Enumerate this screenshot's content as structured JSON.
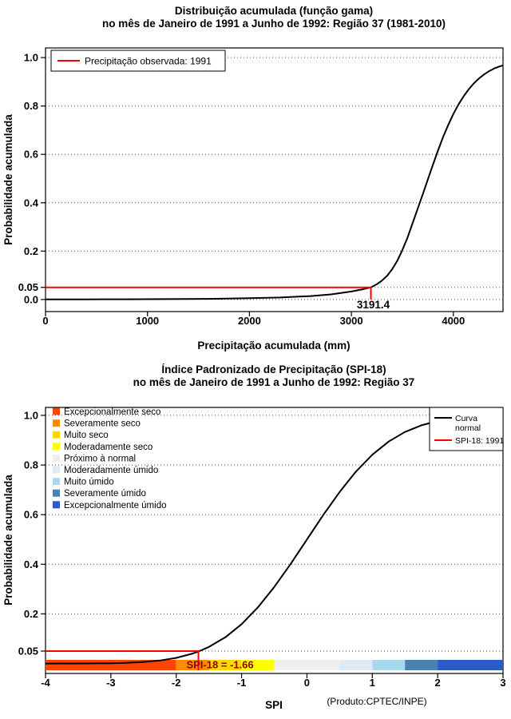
{
  "page": {
    "background": "#ffffff"
  },
  "chart_data": [
    {
      "type": "line",
      "title": "Distribuição acumulada (função gama)",
      "subtitle": "no mês de Janeiro de 1991 a Junho de 1992: Região 37 (1981-2010)",
      "xlabel": "Precipitação acumulada (mm)",
      "ylabel": "Probabilidade acumulada",
      "xlim": [
        0,
        4487
      ],
      "ylim": [
        -0.05,
        1.04
      ],
      "grid": "dotted-horizontal",
      "x_ticks": [
        0,
        1000,
        2000,
        3000,
        4000
      ],
      "x_tick_labels": [
        "0",
        "1000",
        "2000",
        "3000",
        "4000"
      ],
      "y_ticks": [
        0.0,
        0.05,
        0.2,
        0.4,
        0.6,
        0.8,
        1.0
      ],
      "y_tick_labels": [
        "0.0",
        "0.05",
        "0.2",
        "0.4",
        "0.6",
        "0.8",
        "1.0"
      ],
      "curve_color": "#000000",
      "legend": {
        "label": "Precipitação observada: 1991",
        "line_color": "#FF0000",
        "position": "top-left"
      },
      "annotation": {
        "label": "3191.4",
        "x": 3191.4,
        "y": 0.05,
        "line_color": "#FF0000"
      },
      "series": [
        {
          "name": "gamma-cdf",
          "points": [
            [
              0,
              0.0005
            ],
            [
              400,
              0.0006
            ],
            [
              800,
              0.0009
            ],
            [
              1200,
              0.0014
            ],
            [
              1600,
              0.0025
            ],
            [
              2000,
              0.005
            ],
            [
              2300,
              0.008
            ],
            [
              2600,
              0.014
            ],
            [
              2800,
              0.021
            ],
            [
              3000,
              0.033
            ],
            [
              3100,
              0.041
            ],
            [
              3191.4,
              0.05
            ],
            [
              3250,
              0.063
            ],
            [
              3300,
              0.078
            ],
            [
              3350,
              0.098
            ],
            [
              3400,
              0.125
            ],
            [
              3450,
              0.16
            ],
            [
              3500,
              0.205
            ],
            [
              3550,
              0.255
            ],
            [
              3600,
              0.315
            ],
            [
              3650,
              0.375
            ],
            [
              3700,
              0.435
            ],
            [
              3750,
              0.497
            ],
            [
              3800,
              0.558
            ],
            [
              3850,
              0.617
            ],
            [
              3900,
              0.672
            ],
            [
              3950,
              0.722
            ],
            [
              4000,
              0.767
            ],
            [
              4050,
              0.806
            ],
            [
              4100,
              0.84
            ],
            [
              4150,
              0.869
            ],
            [
              4200,
              0.893
            ],
            [
              4250,
              0.913
            ],
            [
              4300,
              0.93
            ],
            [
              4350,
              0.944
            ],
            [
              4400,
              0.955
            ],
            [
              4450,
              0.963
            ],
            [
              4487,
              0.968
            ]
          ]
        }
      ]
    },
    {
      "type": "line",
      "title": "Índice Padronizado de Precipitação (SPI-18)",
      "subtitle": "no mês de Janeiro de 1991 a Junho de 1992: Região 37",
      "xlabel": "SPI",
      "ylabel": "Probabilidade acumulada",
      "product_label": "(Produto:CPTEC/INPE)",
      "xlim": [
        -4,
        3
      ],
      "ylim": [
        -0.04,
        1.032
      ],
      "grid": "dotted-horizontal",
      "x_ticks": [
        -4,
        -3,
        -2,
        -1,
        0,
        1,
        2,
        3
      ],
      "x_tick_labels": [
        "-4",
        "-3",
        "-2",
        "-1",
        "0",
        "1",
        "2",
        "3"
      ],
      "y_ticks": [
        0.05,
        0.2,
        0.4,
        0.6,
        0.8,
        1.0
      ],
      "y_tick_labels": [
        "0.05",
        "0.2",
        "0.4",
        "0.6",
        "0.8",
        "1.0"
      ],
      "curve_color": "#000000",
      "annotation": {
        "label": "SPI-18 = -1.66",
        "x": -1.66,
        "y": 0.05,
        "line_color": "#FF0000",
        "text_color": "#8B0000"
      },
      "legend": {
        "position": "top-right",
        "items": [
          {
            "lines": [
              "Curva",
              "normal"
            ],
            "color": "#000000"
          },
          {
            "lines": [
              "SPI-18: 1991"
            ],
            "color": "#FF0000"
          }
        ]
      },
      "categories": [
        {
          "label": "Excepcionalmente seco",
          "color": "#FF4500",
          "range": [
            -4,
            -2
          ]
        },
        {
          "label": "Severamente seco",
          "color": "#FF8C00",
          "range": [
            -2,
            -1.5
          ]
        },
        {
          "label": "Muito seco",
          "color": "#FFD700",
          "range": [
            -1.5,
            -1
          ]
        },
        {
          "label": "Moderadamente seco",
          "color": "#FFFF00",
          "range": [
            -1,
            -0.5
          ]
        },
        {
          "label": "Próximo à normal",
          "color": "#EFEFEF",
          "range": [
            -0.5,
            0.5
          ]
        },
        {
          "label": "Moderadamente úmido",
          "color": "#DCEBF5",
          "range": [
            0.5,
            1
          ]
        },
        {
          "label": "Muito úmido",
          "color": "#A6D8F0",
          "range": [
            1,
            1.5
          ]
        },
        {
          "label": "Severamente úmido",
          "color": "#4682B4",
          "range": [
            1.5,
            2
          ]
        },
        {
          "label": "Excepcionalmente úmido",
          "color": "#2A5CC8",
          "range": [
            2,
            3
          ]
        }
      ],
      "series": [
        {
          "name": "normal-cdf",
          "points": [
            [
              -4,
              0.0
            ],
            [
              -3.75,
              0.0001
            ],
            [
              -3.5,
              0.0002
            ],
            [
              -3.25,
              0.0006
            ],
            [
              -3,
              0.0013
            ],
            [
              -2.75,
              0.003
            ],
            [
              -2.5,
              0.0062
            ],
            [
              -2.25,
              0.0122
            ],
            [
              -2,
              0.0228
            ],
            [
              -1.75,
              0.0401
            ],
            [
              -1.66,
              0.0485
            ],
            [
              -1.5,
              0.0668
            ],
            [
              -1.25,
              0.1056
            ],
            [
              -1,
              0.1587
            ],
            [
              -0.75,
              0.2266
            ],
            [
              -0.5,
              0.3085
            ],
            [
              -0.25,
              0.4013
            ],
            [
              0,
              0.5
            ],
            [
              0.25,
              0.5987
            ],
            [
              0.5,
              0.6915
            ],
            [
              0.75,
              0.7734
            ],
            [
              1,
              0.8413
            ],
            [
              1.25,
              0.8944
            ],
            [
              1.5,
              0.9332
            ],
            [
              1.75,
              0.9599
            ],
            [
              2,
              0.9772
            ],
            [
              2.25,
              0.9878
            ],
            [
              2.5,
              0.9938
            ],
            [
              2.75,
              0.997
            ],
            [
              3,
              0.9987
            ]
          ]
        }
      ]
    }
  ]
}
